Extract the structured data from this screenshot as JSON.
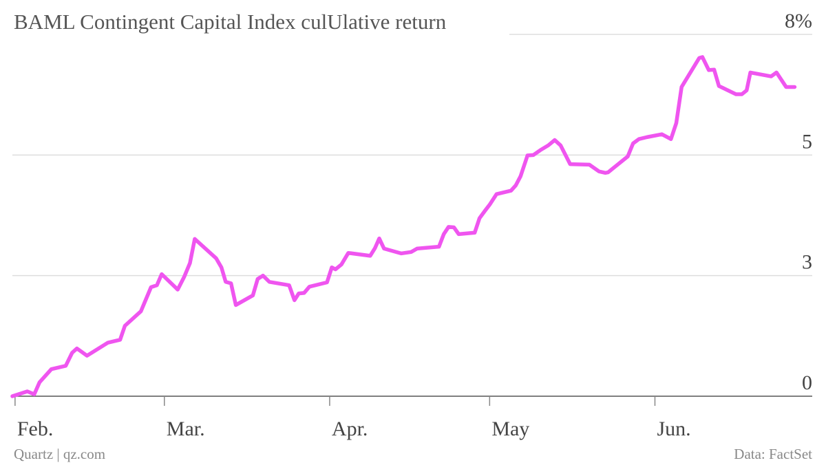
{
  "chart_data": {
    "type": "line",
    "title": "BAML Contingent Capital Index culUlative return",
    "source": "Data: FactSet",
    "credit": "Quartz | qz.com",
    "xlim": [
      -0.5,
      149.5
    ],
    "xticks": [
      {
        "value": 0,
        "label": "Feb."
      },
      {
        "value": 28,
        "label": "Mar."
      },
      {
        "value": 59,
        "label": "Apr."
      },
      {
        "value": 89,
        "label": "May"
      },
      {
        "value": 120,
        "label": "Jun."
      }
    ],
    "ylim": [
      0,
      7.5
    ],
    "yticks": [
      0,
      {
        "value": 2.5,
        "label": "3"
      },
      5,
      {
        "value": 7.5,
        "label": "8%"
      }
    ],
    "grid": true,
    "x": [
      -0.5,
      2.3,
      3.6,
      4.6,
      6.8,
      9.5,
      10.7,
      11.6,
      13.5,
      17.4,
      19.7,
      20.6,
      23.6,
      25.5,
      26.6,
      27.5,
      30.5,
      31.7,
      32.8,
      33.7,
      37.7,
      38.7,
      39.5,
      40.5,
      41.4,
      44.6,
      45.5,
      46.5,
      47.7,
      51.4,
      52.4,
      53.2,
      54.2,
      55.2,
      58.5,
      59.4,
      60.1,
      61.2,
      62.5,
      66.6,
      67.5,
      68.3,
      69.2,
      72.4,
      74.3,
      75.4,
      79.5,
      80.4,
      81.3,
      82.3,
      83.2,
      86.2,
      87.1,
      88.1,
      89.0,
      90.3,
      93.0,
      93.9,
      94.8,
      96.1,
      97.2,
      98.5,
      100.0,
      101.2,
      102.3,
      104.1,
      107.7,
      109.5,
      110.7,
      111.2,
      114.9,
      115.9,
      117.0,
      118.5,
      121.3,
      123.0,
      124.0,
      125.0,
      128.3,
      128.9,
      130.1,
      131.1,
      132.0,
      135.2,
      136.3,
      137.2,
      137.9,
      141.8,
      142.8,
      144.6,
      146.2
    ],
    "series": [
      {
        "color": "#ef55ef",
        "values": [
          0,
          0.1,
          0.04,
          0.29,
          0.56,
          0.63,
          0.9,
          0.99,
          0.84,
          1.11,
          1.17,
          1.46,
          1.76,
          2.26,
          2.3,
          2.53,
          2.21,
          2.47,
          2.76,
          3.26,
          2.86,
          2.67,
          2.37,
          2.34,
          1.89,
          2.09,
          2.43,
          2.5,
          2.37,
          2.3,
          1.99,
          2.13,
          2.14,
          2.27,
          2.36,
          2.67,
          2.63,
          2.73,
          2.97,
          2.91,
          3.07,
          3.27,
          3.06,
          2.96,
          2.99,
          3.06,
          3.1,
          3.36,
          3.51,
          3.5,
          3.36,
          3.39,
          3.69,
          3.84,
          3.97,
          4.19,
          4.26,
          4.37,
          4.56,
          4.99,
          5.0,
          5.1,
          5.2,
          5.31,
          5.2,
          4.81,
          4.8,
          4.66,
          4.63,
          4.64,
          4.97,
          5.24,
          5.33,
          5.37,
          5.43,
          5.33,
          5.66,
          6.41,
          7.01,
          7.03,
          6.76,
          6.77,
          6.43,
          6.26,
          6.26,
          6.34,
          6.71,
          6.63,
          6.71,
          6.41,
          6.41
        ]
      }
    ]
  }
}
